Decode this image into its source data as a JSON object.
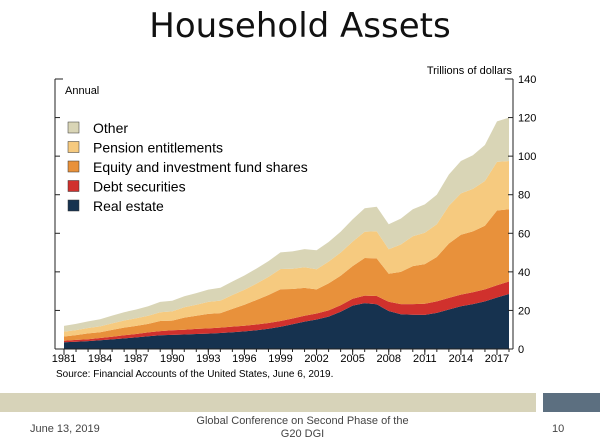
{
  "slide": {
    "title": "Household Assets",
    "footer_date": "June 13, 2019",
    "footer_conference": "Global Conference on Second Phase of the G20 DGI",
    "page_number": "10"
  },
  "chart_data": {
    "type": "area",
    "stacked": true,
    "frequency_label": "Annual",
    "ylabel": "Trillions of dollars",
    "ylim": [
      0,
      140
    ],
    "y_ticks": [
      0,
      20,
      40,
      60,
      80,
      100,
      120,
      140
    ],
    "x_ticks": [
      "1981",
      "1984",
      "1987",
      "1990",
      "1993",
      "1996",
      "1999",
      "2002",
      "2005",
      "2008",
      "2011",
      "2014",
      "2017"
    ],
    "x": [
      1981,
      1982,
      1983,
      1984,
      1985,
      1986,
      1987,
      1988,
      1989,
      1990,
      1991,
      1992,
      1993,
      1994,
      1995,
      1996,
      1997,
      1998,
      1999,
      2000,
      2001,
      2002,
      2003,
      2004,
      2005,
      2006,
      2007,
      2008,
      2009,
      2010,
      2011,
      2012,
      2013,
      2014,
      2015,
      2016,
      2017,
      2018
    ],
    "legend_position": "upper-left",
    "source": "Source: Financial Accounts of the United States, June 6, 2019.",
    "series": [
      {
        "name": "Real estate",
        "color": "#16324f",
        "values": [
          3.5,
          3.8,
          4.1,
          4.5,
          5.0,
          5.5,
          6.0,
          6.6,
          7.1,
          7.3,
          7.5,
          7.8,
          8.0,
          8.3,
          8.7,
          9.1,
          9.7,
          10.5,
          11.5,
          12.8,
          14.2,
          15.3,
          16.8,
          19.3,
          22.5,
          23.8,
          23.2,
          19.7,
          18.0,
          17.8,
          17.7,
          18.7,
          20.5,
          22.2,
          23.3,
          24.7,
          26.7,
          28.5
        ]
      },
      {
        "name": "Debt securities",
        "color": "#d0312d",
        "values": [
          0.8,
          0.9,
          1.0,
          1.2,
          1.4,
          1.6,
          1.8,
          2.0,
          2.2,
          2.4,
          2.5,
          2.6,
          2.7,
          2.8,
          2.9,
          3.0,
          3.0,
          3.0,
          3.0,
          3.0,
          3.0,
          3.1,
          3.2,
          3.4,
          3.6,
          3.9,
          4.3,
          4.8,
          5.3,
          5.5,
          5.8,
          6.0,
          6.0,
          6.0,
          6.1,
          6.2,
          6.4,
          6.5
        ]
      },
      {
        "name": "Equity and investment fund shares",
        "color": "#e8913b",
        "values": [
          2.2,
          2.5,
          3.0,
          3.0,
          3.5,
          4.0,
          4.2,
          4.4,
          5.2,
          5.0,
          6.3,
          6.8,
          7.5,
          7.5,
          9.2,
          10.8,
          12.7,
          14.5,
          16.5,
          15.3,
          14.5,
          12.5,
          14.0,
          15.3,
          16.9,
          19.5,
          19.5,
          14.5,
          16.7,
          19.7,
          20.5,
          23.0,
          28.2,
          31.0,
          31.6,
          33.0,
          38.7,
          37.5
        ]
      },
      {
        "name": "Pension entitlements",
        "color": "#f6ca7f",
        "values": [
          2.5,
          2.6,
          2.8,
          3.0,
          3.4,
          3.7,
          3.9,
          4.2,
          4.6,
          4.8,
          5.3,
          5.7,
          6.2,
          6.5,
          7.2,
          7.8,
          8.5,
          9.4,
          10.5,
          10.5,
          10.7,
          10.5,
          11.3,
          12.0,
          12.7,
          13.6,
          14.1,
          12.7,
          14.2,
          15.5,
          16.3,
          17.0,
          19.6,
          21.5,
          22.0,
          23.2,
          25.2,
          25.0
        ]
      },
      {
        "name": "Other",
        "color": "#d9d5b6",
        "values": [
          3.0,
          3.2,
          3.4,
          3.7,
          4.0,
          4.3,
          4.6,
          5.0,
          5.3,
          5.5,
          5.8,
          6.1,
          6.4,
          6.7,
          7.0,
          7.4,
          7.8,
          8.2,
          8.6,
          9.0,
          9.4,
          9.8,
          10.2,
          10.8,
          11.5,
          12.2,
          12.7,
          13.0,
          13.4,
          14.0,
          14.7,
          15.3,
          16.2,
          16.8,
          17.5,
          18.7,
          21.0,
          22.5
        ]
      }
    ]
  }
}
